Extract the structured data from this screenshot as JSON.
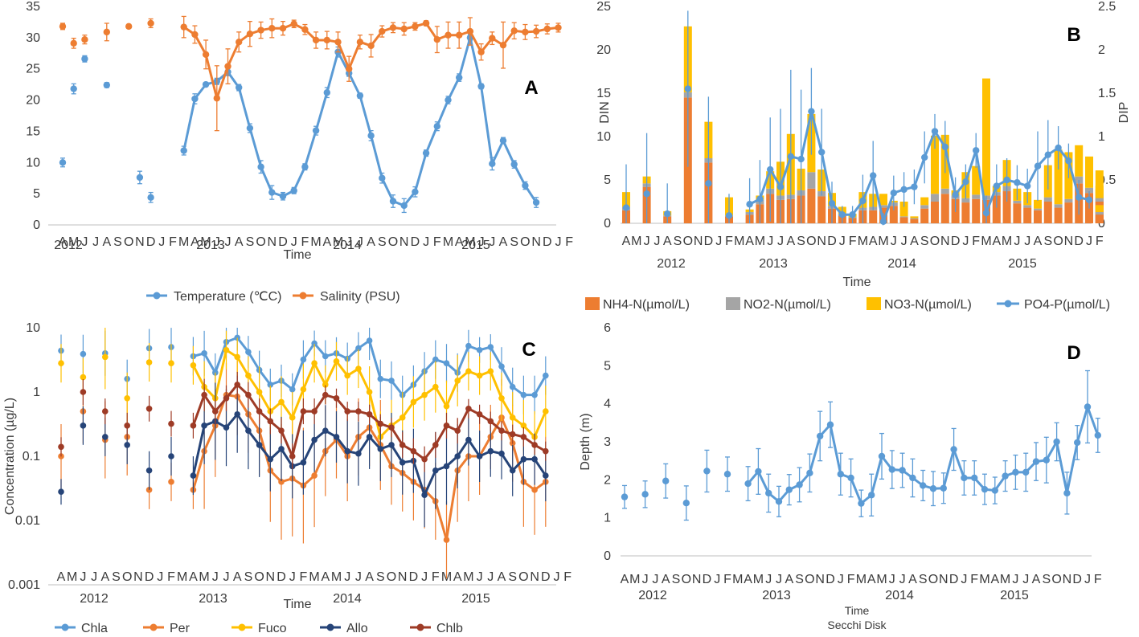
{
  "colors": {
    "blue": "#5b9bd5",
    "orange": "#ed7d31",
    "gray": "#a5a5a5",
    "yellow": "#ffc000",
    "navy": "#264478",
    "brown": "#9e3b26",
    "axis": "#bfbfbf",
    "text": "#404040"
  },
  "month_labels": [
    "A",
    "M",
    "J",
    "J",
    "A",
    "S",
    "O",
    "N",
    "D",
    "J",
    "F",
    "M",
    "A",
    "M",
    "J",
    "J",
    "A",
    "S",
    "O",
    "N",
    "D",
    "J",
    "F",
    "M",
    "A",
    "M",
    "J",
    "J",
    "A",
    "S",
    "O",
    "N",
    "D",
    "J",
    "F",
    "M",
    "A",
    "M",
    "J",
    "J",
    "A",
    "S",
    "O",
    "N",
    "D",
    "J",
    "F"
  ],
  "years": [
    "2012",
    "2013",
    "2014",
    "2015"
  ],
  "chart_data": [
    {
      "id": "A",
      "type": "line",
      "panel_label": "A",
      "xlabel": "Time",
      "ylabel": "",
      "ylim": [
        0,
        35
      ],
      "yticks": [
        0,
        5,
        10,
        15,
        20,
        25,
        30,
        35
      ],
      "series": [
        {
          "name": "Temperature (℃C)",
          "color": "blue",
          "values": [
            10.0,
            21.8,
            26.6,
            22.4,
            null,
            null,
            null,
            7.6,
            4.4,
            null,
            null,
            11.9,
            20.2,
            22.5,
            23.0,
            24.5,
            22.0,
            15.5,
            9.3,
            5.2,
            4.6,
            5.5,
            9.3,
            15.1,
            21.2,
            27.7,
            24.3,
            20.7,
            14.3,
            7.5,
            3.8,
            3.1,
            5.3,
            11.5,
            15.8,
            20.0,
            23.6,
            30.0,
            22.2,
            9.8,
            13.5,
            9.7,
            6.3,
            3.6
          ],
          "errors": [
            0.7,
            0.8,
            0.5,
            0.4,
            null,
            null,
            null,
            1.0,
            0.8,
            null,
            null,
            0.7,
            0.8,
            0.3,
            0.5,
            0.6,
            0.5,
            0.7,
            1.0,
            1.1,
            0.6,
            0.5,
            0.5,
            0.7,
            0.8,
            0.8,
            0.5,
            0.4,
            0.8,
            0.8,
            1.0,
            1.1,
            0.8,
            0.5,
            0.7,
            0.6,
            0.6,
            0.5,
            0.4,
            1.0,
            0.5,
            0.6,
            0.6,
            0.8
          ],
          "x_index": [
            0,
            1,
            2,
            4,
            null,
            null,
            null,
            7,
            8,
            null,
            null,
            11,
            12,
            13,
            14,
            15,
            16,
            17,
            18,
            19,
            20,
            21,
            22,
            23,
            24,
            25,
            26,
            27,
            28,
            29,
            30,
            31,
            32,
            33,
            34,
            35,
            36,
            37,
            38,
            39,
            40,
            41,
            42,
            43
          ]
        },
        {
          "name": "Salinity (PSU)",
          "color": "orange",
          "values": [
            31.8,
            29.1,
            29.7,
            30.9,
            null,
            31.8,
            32.3,
            null,
            null,
            31.7,
            30.5,
            27.3,
            20.3,
            25.4,
            29.3,
            30.6,
            31.2,
            31.5,
            31.5,
            32.2,
            31.3,
            29.6,
            29.6,
            29.3,
            25.0,
            29.3,
            28.7,
            31.0,
            31.6,
            31.4,
            31.8,
            32.3,
            29.7,
            30.4,
            30.4,
            31.0,
            27.7,
            29.9,
            28.8,
            31.1,
            30.9,
            31.0,
            31.4,
            31.6
          ],
          "errors": [
            0.5,
            0.8,
            0.7,
            1.4,
            null,
            0.3,
            0.7,
            null,
            null,
            1.7,
            1.4,
            2.3,
            5.2,
            2.8,
            1.6,
            2.0,
            1.3,
            1.5,
            1.1,
            0.6,
            0.8,
            1.3,
            1.4,
            1.6,
            2.0,
            1.1,
            1.8,
            0.9,
            0.8,
            1.0,
            0.6,
            0.4,
            2.1,
            2.1,
            2.1,
            2.2,
            1.3,
            1.0,
            3.7,
            1.3,
            1.2,
            1.0,
            0.8,
            0.7
          ],
          "x_index": [
            0,
            1,
            2,
            4,
            null,
            6,
            8,
            null,
            null,
            11,
            12,
            13,
            14,
            15,
            16,
            17,
            18,
            19,
            20,
            21,
            22,
            23,
            24,
            25,
            26,
            27,
            28,
            29,
            30,
            31,
            32,
            33,
            34,
            35,
            36,
            37,
            38,
            39,
            40,
            41,
            42,
            43,
            44,
            45
          ]
        }
      ],
      "legend": [
        "Temperature (℃C)",
        "Salinity (PSU)"
      ]
    },
    {
      "id": "B",
      "type": "bar+line",
      "panel_label": "B",
      "xlabel": "Time",
      "ylabel": "DIN",
      "y2label": "DIP",
      "ylim": [
        0,
        25
      ],
      "y2lim": [
        0,
        2.5
      ],
      "yticks": [
        0,
        5,
        10,
        15,
        20,
        25
      ],
      "y2ticks": [
        "0",
        "0.5",
        "1",
        "1.5",
        "2",
        "2.5"
      ],
      "legend": [
        "NH4-N(µmol/L)",
        "NO2-N(µmol/L)",
        "NO3-N(µmol/L)",
        "PO4-P(µmol/L)"
      ],
      "nh4": [
        1.5,
        4.2,
        0.8,
        14.5,
        7.0,
        0.8,
        1.0,
        2.2,
        3.4,
        2.7,
        2.8,
        3.2,
        4.0,
        3.1,
        1.7,
        0.9,
        0.6,
        1.5,
        1.5,
        1.8,
        2.0,
        0.7,
        0.5,
        1.7,
        2.5,
        3.4,
        2.8,
        2.4,
        2.8,
        2.7,
        3.2,
        3.7,
        2.3,
        1.8,
        1.5,
        2.5,
        1.8,
        2.4,
        4.6,
        3.5,
        3.0,
        2.8,
        2.5,
        1.0
      ],
      "no2": [
        0.4,
        0.4,
        0.1,
        0.6,
        0.5,
        0.1,
        0.3,
        0.5,
        0.6,
        0.5,
        0.5,
        0.6,
        1.9,
        0.6,
        0.3,
        0.2,
        0.1,
        0.3,
        0.4,
        0.3,
        0.4,
        0.1,
        0.1,
        0.4,
        0.9,
        0.6,
        0.4,
        0.5,
        0.5,
        0.5,
        0.4,
        0.6,
        0.3,
        0.3,
        0.2,
        0.5,
        0.4,
        0.4,
        0.8,
        0.6,
        0.5,
        0.5,
        0.4,
        0.3
      ],
      "no3": [
        1.7,
        0.8,
        0.5,
        7.6,
        4.2,
        2.1,
        0.3,
        0.5,
        2.0,
        3.9,
        7.0,
        2.5,
        6.7,
        2.5,
        1.5,
        0.8,
        0.4,
        1.8,
        1.5,
        1.3,
        0.2,
        1.7,
        0.2,
        0.9,
        6.7,
        6.2,
        0.6,
        3.0,
        3.3,
        13.5,
        0.7,
        3.0,
        1.4,
        1.5,
        1.0,
        3.7,
        6.3,
        5.4,
        3.6,
        3.6,
        2.6,
        1.0,
        1.0,
        0.8
      ],
      "po4": [
        0.18,
        0.34,
        0.11,
        1.55,
        0.46,
        0.09,
        0.22,
        0.28,
        0.62,
        0.42,
        0.77,
        0.74,
        1.29,
        0.82,
        0.23,
        0.1,
        0.1,
        0.26,
        0.55,
        0.02,
        0.35,
        0.39,
        0.42,
        0.76,
        1.06,
        0.88,
        0.33,
        0.48,
        0.84,
        0.12,
        0.43,
        0.5,
        0.47,
        0.43,
        0.66,
        0.79,
        0.87,
        0.72,
        0.3,
        0.27
      ],
      "po4_err": [
        0.5,
        0.7,
        0.35,
        0.9,
        1.0,
        0.25,
        0.3,
        0.45,
        0.6,
        0.9,
        1.0,
        0.8,
        0.5,
        0.5,
        0.25,
        0.1,
        0.1,
        0.3,
        0.4,
        0.1,
        0.2,
        0.2,
        0.2,
        0.3,
        0.2,
        0.3,
        0.2,
        0.2,
        0.2,
        0.2,
        0.25,
        0.25,
        0.2,
        0.2,
        0.4,
        0.4,
        0.25,
        0.2,
        0.2,
        0.1
      ]
    },
    {
      "id": "C",
      "type": "line",
      "scale": "log",
      "panel_label": "C",
      "xlabel": "Time",
      "ylabel": "Concentration (µg/L)",
      "ylim": [
        0.001,
        10
      ],
      "yticks": [
        "0.001",
        "0.01",
        "0.1",
        "1",
        "10"
      ],
      "legend": [
        "Chla",
        "Per",
        "Fuco",
        "Allo",
        "Chlb"
      ],
      "series": [
        {
          "name": "Chla",
          "color": "blue",
          "values": [
            4.4,
            3.9,
            4.0,
            1.6,
            4.8,
            5.0,
            3.6,
            4.0,
            2.0,
            6.0,
            7.0,
            4.2,
            2.2,
            1.3,
            1.5,
            1.1,
            3.2,
            5.7,
            3.6,
            4.0,
            3.3,
            4.8,
            6.3,
            1.6,
            1.5,
            0.9,
            1.3,
            2.1,
            3.2,
            2.8,
            2.0,
            5.2,
            4.5,
            5.0,
            2.5,
            1.2,
            0.9,
            0.9,
            1.8
          ],
          "err": [
            0.25,
            0.3,
            0.35,
            0.3,
            0.3,
            0.3,
            0.3,
            0.35,
            0.3,
            0.25,
            0.2,
            0.25,
            0.3,
            0.25,
            0.25,
            0.25,
            0.3,
            0.2,
            0.25,
            0.25,
            0.25,
            0.25,
            0.3,
            0.3,
            0.3,
            0.3,
            0.3,
            0.3,
            0.3,
            0.3,
            0.3,
            0.25,
            0.2,
            0.2,
            0.3,
            0.3,
            0.3,
            0.3,
            0.3
          ]
        },
        {
          "name": "Per",
          "color": "orange",
          "values": [
            0.1,
            0.5,
            0.18,
            0.2,
            0.03,
            0.04,
            0.03,
            0.12,
            0.3,
            0.9,
            0.85,
            0.45,
            0.25,
            0.06,
            0.04,
            0.045,
            0.035,
            0.05,
            0.12,
            0.18,
            0.1,
            0.2,
            0.28,
            0.15,
            0.07,
            0.055,
            0.04,
            0.03,
            0.02,
            0.005,
            0.06,
            0.1,
            0.1,
            0.2,
            0.4,
            0.16,
            0.04,
            0.03,
            0.04
          ],
          "err": [
            0.5,
            0.5,
            0.6,
            0.6,
            0.3,
            0.3,
            0.3,
            0.9,
            0.8,
            0.5,
            0.6,
            0.6,
            0.7,
            0.8,
            0.9,
            0.9,
            0.9,
            0.8,
            0.7,
            0.6,
            0.7,
            0.6,
            0.6,
            0.7,
            0.6,
            0.6,
            0.6,
            0.6,
            0.6,
            0.6,
            0.8,
            0.7,
            0.6,
            0.5,
            0.6,
            0.6,
            0.7,
            0.7,
            0.7
          ]
        },
        {
          "name": "Fuco",
          "color": "yellow",
          "values": [
            2.8,
            1.7,
            3.5,
            0.8,
            2.9,
            2.8,
            2.6,
            1.2,
            0.8,
            4.5,
            3.5,
            1.8,
            1.0,
            0.5,
            0.7,
            0.4,
            1.1,
            2.8,
            1.3,
            3.0,
            1.8,
            2.3,
            1.0,
            0.2,
            0.3,
            0.4,
            0.7,
            0.9,
            1.2,
            0.6,
            1.5,
            2.1,
            1.8,
            2.1,
            0.8,
            0.4,
            0.3,
            0.2,
            0.5
          ],
          "err": [
            0.3,
            0.3,
            0.5,
            0.4,
            0.3,
            0.3,
            0.3,
            0.4,
            0.4,
            0.3,
            0.3,
            0.3,
            0.4,
            0.4,
            0.4,
            0.4,
            0.4,
            0.3,
            0.3,
            0.3,
            0.3,
            0.3,
            0.4,
            0.4,
            0.4,
            0.4,
            0.4,
            0.4,
            0.4,
            0.4,
            0.4,
            0.3,
            0.3,
            0.3,
            0.4,
            0.4,
            0.4,
            0.4,
            0.4
          ]
        },
        {
          "name": "Allo",
          "color": "navy",
          "values": [
            0.028,
            0.3,
            0.2,
            0.15,
            0.06,
            0.1,
            0.05,
            0.3,
            0.35,
            0.28,
            0.45,
            0.25,
            0.15,
            0.09,
            0.13,
            0.07,
            0.08,
            0.18,
            0.25,
            0.2,
            0.12,
            0.11,
            0.2,
            0.13,
            0.15,
            0.08,
            0.085,
            0.025,
            0.06,
            0.07,
            0.1,
            0.18,
            0.1,
            0.12,
            0.11,
            0.06,
            0.09,
            0.09,
            0.05
          ],
          "err": [
            0.2,
            0.3,
            0.3,
            0.3,
            0.3,
            0.3,
            0.3,
            0.6,
            0.6,
            0.6,
            0.6,
            0.6,
            0.5,
            0.5,
            0.5,
            0.5,
            0.5,
            0.5,
            0.4,
            0.4,
            0.5,
            0.5,
            0.5,
            0.5,
            0.5,
            0.5,
            0.5,
            0.5,
            0.6,
            0.6,
            0.5,
            0.4,
            0.4,
            0.4,
            0.4,
            0.4,
            0.4,
            0.4,
            0.4
          ]
        },
        {
          "name": "Chlb",
          "color": "brown",
          "values": [
            0.14,
            1.0,
            0.5,
            0.3,
            0.55,
            0.32,
            0.3,
            0.9,
            0.5,
            0.8,
            1.3,
            0.9,
            0.5,
            0.35,
            0.25,
            0.1,
            0.5,
            0.5,
            0.9,
            0.8,
            0.5,
            0.5,
            0.45,
            0.32,
            0.28,
            0.15,
            0.12,
            0.09,
            0.15,
            0.3,
            0.25,
            0.55,
            0.45,
            0.35,
            0.25,
            0.22,
            0.2,
            0.15,
            0.12
          ],
          "err": [
            0.15,
            0.2,
            0.2,
            0.2,
            0.2,
            0.2,
            0.2,
            0.25,
            0.2,
            0.2,
            0.2,
            0.2,
            0.2,
            0.2,
            0.2,
            0.2,
            0.2,
            0.2,
            0.15,
            0.15,
            0.15,
            0.15,
            0.15,
            0.15,
            0.15,
            0.2,
            0.2,
            0.2,
            0.2,
            0.2,
            0.2,
            0.15,
            0.15,
            0.15,
            0.15,
            0.15,
            0.15,
            0.15,
            0.15
          ]
        }
      ]
    },
    {
      "id": "D",
      "type": "line",
      "panel_label": "D",
      "xlabel": "Time",
      "ylabel": "Depth (m)",
      "ylim": [
        0,
        6
      ],
      "yticks": [
        0,
        1,
        2,
        3,
        4,
        5,
        6
      ],
      "legend": [
        "Secchi Disk"
      ],
      "series": [
        {
          "name": "Secchi Disk",
          "color": "blue",
          "values": [
            1.55,
            1.62,
            1.97,
            1.39,
            2.23,
            2.15,
            1.9,
            2.22,
            1.65,
            1.43,
            1.74,
            1.87,
            2.18,
            3.15,
            3.45,
            2.15,
            2.05,
            1.38,
            1.6,
            2.62,
            2.27,
            2.25,
            2.05,
            1.85,
            1.77,
            1.78,
            2.8,
            2.05,
            2.05,
            1.75,
            1.72,
            2.1,
            2.2,
            2.2,
            2.48,
            2.52,
            3.0,
            1.65,
            2.98,
            3.92,
            3.17
          ],
          "err": [
            0.3,
            0.35,
            0.45,
            0.45,
            0.55,
            0.45,
            0.45,
            0.6,
            0.5,
            0.4,
            0.4,
            0.45,
            0.5,
            0.65,
            0.6,
            0.55,
            0.5,
            0.35,
            0.55,
            0.6,
            0.5,
            0.45,
            0.5,
            0.4,
            0.45,
            0.4,
            0.55,
            0.45,
            0.45,
            0.4,
            0.35,
            0.4,
            0.45,
            0.5,
            0.5,
            0.6,
            0.5,
            0.55,
            0.45,
            0.95,
            0.45
          ]
        }
      ]
    }
  ]
}
